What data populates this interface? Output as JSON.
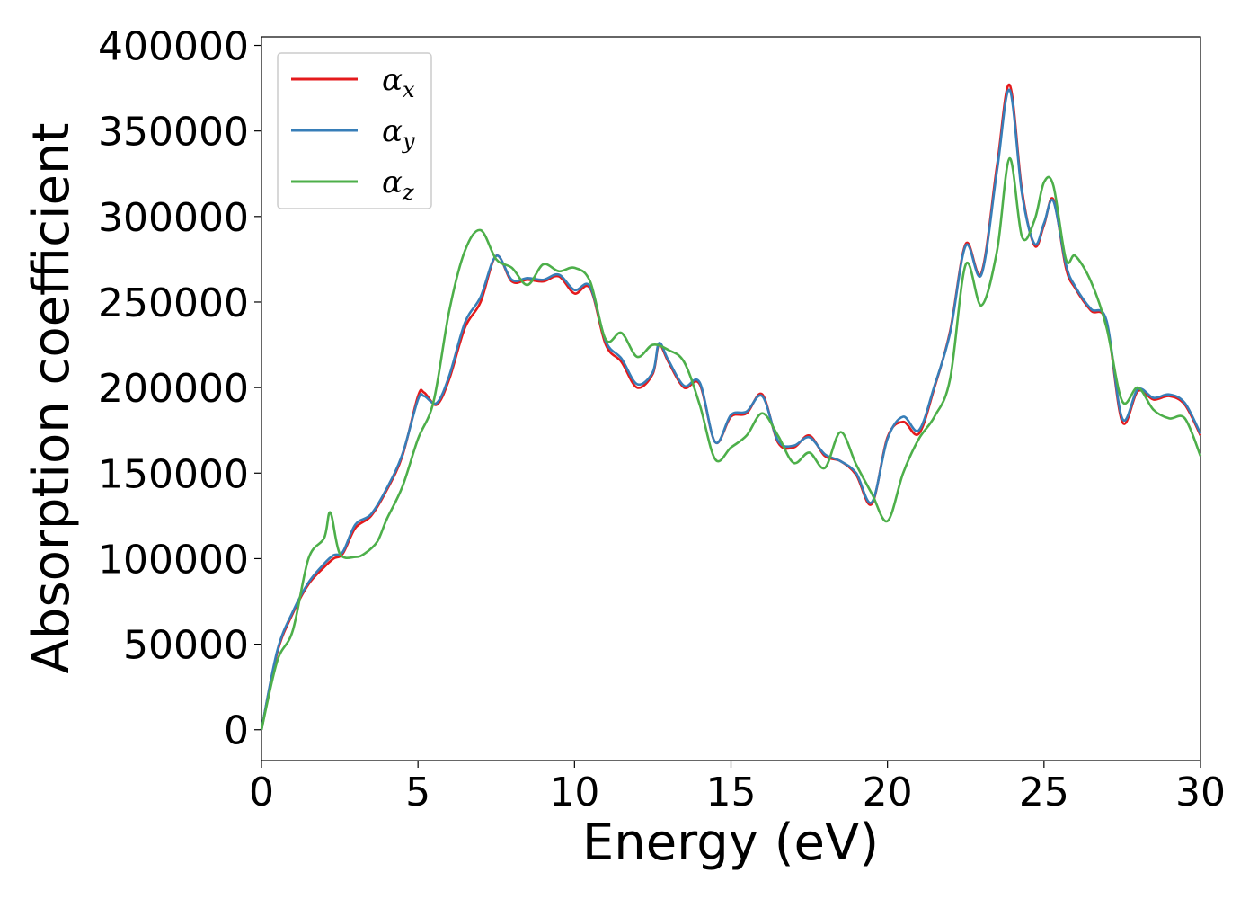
{
  "chart_data": {
    "type": "line",
    "xlabel": "Energy (eV)",
    "ylabel": "Absorption coefficient",
    "xlim": [
      0,
      30
    ],
    "ylim": [
      -18000,
      405000
    ],
    "xticks": [
      "0",
      "5",
      "10",
      "15",
      "20",
      "25",
      "30"
    ],
    "yticks": [
      "0",
      "50000",
      "100000",
      "150000",
      "200000",
      "250000",
      "300000",
      "350000",
      "400000"
    ],
    "grid": false,
    "legend_position": "top-left",
    "series": [
      {
        "name": "α",
        "sub": "x",
        "color": "#e41a1c",
        "x": [
          0,
          0.5,
          1.0,
          1.5,
          2.0,
          2.3,
          2.6,
          3.0,
          3.5,
          4.0,
          4.5,
          5.0,
          5.2,
          5.6,
          6.0,
          6.5,
          7.0,
          7.5,
          8.0,
          8.5,
          9.0,
          9.5,
          10.0,
          10.5,
          11.0,
          11.5,
          12.0,
          12.5,
          12.7,
          13.0,
          13.5,
          14.0,
          14.5,
          15.0,
          15.5,
          16.0,
          16.5,
          17.0,
          17.5,
          18.0,
          18.5,
          19.0,
          19.5,
          20.0,
          20.5,
          21.0,
          21.5,
          22.0,
          22.5,
          23.0,
          23.5,
          23.9,
          24.3,
          24.7,
          25.0,
          25.3,
          25.7,
          26.0,
          26.5,
          27.0,
          27.5,
          28.0,
          28.5,
          29.0,
          29.5,
          30.0
        ],
        "y": [
          0,
          45000,
          68000,
          85000,
          95000,
          100000,
          103000,
          118000,
          125000,
          140000,
          160000,
          195000,
          197000,
          190000,
          205000,
          235000,
          250000,
          277000,
          262000,
          263000,
          262000,
          265000,
          255000,
          258000,
          225000,
          215000,
          200000,
          208000,
          225000,
          215000,
          200000,
          202000,
          168000,
          183000,
          185000,
          196000,
          168000,
          165000,
          172000,
          160000,
          157000,
          149000,
          132000,
          171000,
          180000,
          173000,
          200000,
          233000,
          284000,
          267000,
          330000,
          377000,
          315000,
          283000,
          295000,
          310000,
          270000,
          258000,
          245000,
          238000,
          180000,
          198000,
          193000,
          195000,
          190000,
          172000
        ]
      },
      {
        "name": "α",
        "sub": "y",
        "color": "#377eb8",
        "x": [
          0,
          0.5,
          1.0,
          1.5,
          2.0,
          2.3,
          2.6,
          3.0,
          3.5,
          4.0,
          4.5,
          5.0,
          5.2,
          5.6,
          6.0,
          6.5,
          7.0,
          7.5,
          8.0,
          8.5,
          9.0,
          9.5,
          10.0,
          10.5,
          11.0,
          11.5,
          12.0,
          12.5,
          12.7,
          13.0,
          13.5,
          14.0,
          14.5,
          15.0,
          15.5,
          16.0,
          16.5,
          17.0,
          17.5,
          18.0,
          18.5,
          19.0,
          19.5,
          20.0,
          20.5,
          21.0,
          21.5,
          22.0,
          22.5,
          23.0,
          23.5,
          23.9,
          24.3,
          24.7,
          25.0,
          25.3,
          25.7,
          26.0,
          26.5,
          27.0,
          27.5,
          28.0,
          28.5,
          29.0,
          29.5,
          30.0
        ],
        "y": [
          0,
          46000,
          69000,
          86000,
          97000,
          102000,
          104000,
          120000,
          126000,
          141000,
          161000,
          193000,
          195000,
          191000,
          207000,
          238000,
          253000,
          277000,
          263000,
          264000,
          263000,
          266000,
          257000,
          259000,
          227000,
          217000,
          202000,
          209000,
          226000,
          216000,
          201000,
          203000,
          168000,
          184000,
          186000,
          195000,
          169000,
          166000,
          171000,
          161000,
          157000,
          150000,
          133000,
          170000,
          183000,
          175000,
          201000,
          232000,
          283000,
          266000,
          327000,
          374000,
          313000,
          284000,
          296000,
          309000,
          272000,
          259000,
          246000,
          239000,
          182000,
          199000,
          194000,
          196000,
          191000,
          173000
        ]
      },
      {
        "name": "α",
        "sub": "z",
        "color": "#4daf4a",
        "x": [
          0,
          0.5,
          1.0,
          1.5,
          2.0,
          2.2,
          2.5,
          3.0,
          3.3,
          3.7,
          4.0,
          4.5,
          5.0,
          5.5,
          6.0,
          6.5,
          7.0,
          7.5,
          8.0,
          8.5,
          9.0,
          9.5,
          10.0,
          10.5,
          11.0,
          11.5,
          12.0,
          12.5,
          13.0,
          13.5,
          14.0,
          14.5,
          15.0,
          15.5,
          16.0,
          16.5,
          17.0,
          17.5,
          18.0,
          18.5,
          19.0,
          19.5,
          20.0,
          20.5,
          21.0,
          21.5,
          22.0,
          22.5,
          23.0,
          23.5,
          23.9,
          24.3,
          24.7,
          25.0,
          25.3,
          25.7,
          26.0,
          26.5,
          27.0,
          27.5,
          28.0,
          28.5,
          29.0,
          29.5,
          30.0
        ],
        "y": [
          0,
          40000,
          58000,
          100000,
          112000,
          127000,
          103000,
          101000,
          103000,
          110000,
          123000,
          142000,
          170000,
          192000,
          245000,
          280000,
          292000,
          275000,
          270000,
          260000,
          272000,
          268000,
          270000,
          262000,
          228000,
          232000,
          218000,
          225000,
          222000,
          215000,
          190000,
          158000,
          165000,
          172000,
          185000,
          172000,
          156000,
          162000,
          153000,
          174000,
          155000,
          138000,
          122000,
          150000,
          170000,
          183000,
          205000,
          272000,
          248000,
          280000,
          334000,
          288000,
          298000,
          320000,
          318000,
          275000,
          277000,
          262000,
          235000,
          192000,
          200000,
          187000,
          182000,
          182000,
          160000
        ]
      }
    ]
  }
}
